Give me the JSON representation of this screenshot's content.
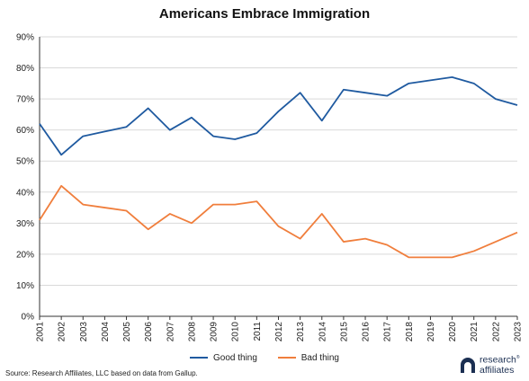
{
  "chart_data": {
    "type": "line",
    "title": "Americans Embrace Immigration",
    "xlabel": "",
    "ylabel": "",
    "x": [
      "2001",
      "2002",
      "2003",
      "2004",
      "2005",
      "2006",
      "2007",
      "2008",
      "2009",
      "2010",
      "2011",
      "2012",
      "2013",
      "2014",
      "2015",
      "2016",
      "2017",
      "2018",
      "2019",
      "2020",
      "2021",
      "2022",
      "2023"
    ],
    "yticks": [
      "0%",
      "10%",
      "20%",
      "30%",
      "40%",
      "50%",
      "60%",
      "70%",
      "80%",
      "90%"
    ],
    "ylim": [
      0,
      90
    ],
    "grid": "horizontal",
    "legend_position": "bottom-center",
    "series": [
      {
        "name": "Good thing",
        "color": "#1f5aa0",
        "values": [
          62,
          52,
          58,
          59.5,
          61,
          67,
          60,
          64,
          58,
          57,
          59,
          66,
          72,
          63,
          73,
          72,
          71,
          75,
          76,
          77,
          75,
          70,
          68
        ]
      },
      {
        "name": "Bad thing",
        "color": "#f07e3c",
        "values": [
          31,
          42,
          36,
          35,
          34,
          28,
          33,
          30,
          36,
          36,
          37,
          29,
          25,
          33,
          24,
          25,
          23,
          19,
          19,
          19,
          21,
          24,
          27
        ]
      }
    ]
  },
  "source": "Source: Research Affiliates, LLC based on data from Gallup.",
  "logo": {
    "line1": "research",
    "line2": "affiliates",
    "mark": "®"
  }
}
